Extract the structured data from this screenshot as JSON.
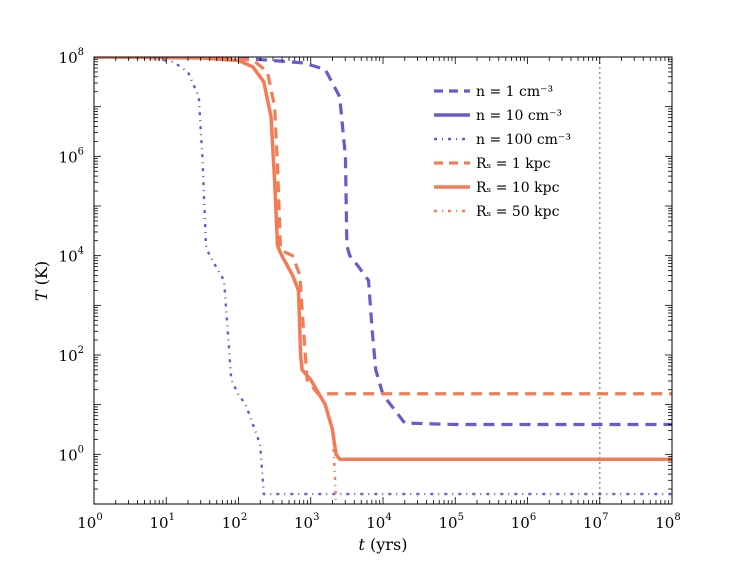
{
  "chart_data": {
    "type": "line",
    "title": "",
    "xlabel": {
      "var": "t",
      "unit": "yrs"
    },
    "ylabel": {
      "var": "T",
      "unit": "K"
    },
    "xscale": "log",
    "yscale": "log",
    "xlim_log10": [
      0,
      8
    ],
    "ylim_log10": [
      -1,
      8
    ],
    "xticks": [
      {
        "base": "10",
        "exp": "0"
      },
      {
        "base": "10",
        "exp": "1"
      },
      {
        "base": "10",
        "exp": "2"
      },
      {
        "base": "10",
        "exp": "3"
      },
      {
        "base": "10",
        "exp": "4"
      },
      {
        "base": "10",
        "exp": "5"
      },
      {
        "base": "10",
        "exp": "6"
      },
      {
        "base": "10",
        "exp": "7"
      },
      {
        "base": "10",
        "exp": "8"
      }
    ],
    "yticks": [
      {
        "base": "10",
        "exp": "0",
        "value_log10": 0
      },
      {
        "base": "10",
        "exp": "2",
        "value_log10": 2
      },
      {
        "base": "10",
        "exp": "4",
        "value_log10": 4
      },
      {
        "base": "10",
        "exp": "6",
        "value_log10": 6
      },
      {
        "base": "10",
        "exp": "8",
        "value_log10": 8
      }
    ],
    "vline": {
      "x_log10": 7,
      "color": "#999999",
      "style": "dotted"
    },
    "colors": {
      "n_series": "#6a5acd",
      "rs_series": "#f47c55"
    },
    "legend_position": "top-right",
    "legend": [
      {
        "label": "n = 1 cm⁻³",
        "color": "#6a5acd",
        "style": "dashed"
      },
      {
        "label": "n = 10 cm⁻³",
        "color": "#6a5acd",
        "style": "solid"
      },
      {
        "label": "n = 100 cm⁻³",
        "color": "#6a5acd",
        "style": "dashdot"
      },
      {
        "label": "Rₛ = 1 kpc",
        "color": "#f47c55",
        "style": "dashed"
      },
      {
        "label": "Rₛ = 10 kpc",
        "color": "#f47c55",
        "style": "solid"
      },
      {
        "label": "Rₛ = 50 kpc",
        "color": "#f47c55",
        "style": "dashdot"
      }
    ],
    "series": [
      {
        "name": "n = 1 cm^-3 (Rs = 1 kpc)",
        "color": "#6a5acd",
        "style": "dashed",
        "x_log10": [
          0,
          1.5,
          2.2,
          2.9,
          3.2,
          3.4,
          3.48,
          3.5,
          3.54,
          3.65,
          3.8,
          3.85,
          3.9,
          4.0,
          4.3,
          5,
          6,
          7,
          8
        ],
        "y_log10": [
          8,
          7.98,
          7.96,
          7.88,
          7.75,
          7.2,
          6,
          4.2,
          4.0,
          3.8,
          3.5,
          2.5,
          1.7,
          1.2,
          0.63,
          0.6,
          0.6,
          0.6,
          0.6
        ]
      },
      {
        "name": "R_s = 1 kpc",
        "color": "#f47c55",
        "style": "dashed",
        "x_log10": [
          0,
          1.5,
          2.2,
          2.4,
          2.5,
          2.54,
          2.56,
          2.58,
          2.6,
          2.75,
          2.85,
          2.9,
          2.95,
          3.1,
          4,
          5,
          6,
          7,
          8
        ],
        "y_log10": [
          8,
          7.98,
          7.94,
          7.7,
          7.0,
          5.8,
          5.0,
          4.2,
          4.1,
          4.0,
          3.6,
          2.5,
          1.5,
          1.22,
          1.22,
          1.22,
          1.22,
          1.22,
          1.22
        ]
      },
      {
        "name": "n = 10 cm^-3 (Rs = 10 kpc)",
        "color": "#f47c55",
        "style": "solid",
        "x_log10": [
          0,
          1.5,
          2.0,
          2.2,
          2.35,
          2.45,
          2.5,
          2.54,
          2.6,
          2.75,
          2.83,
          2.86,
          2.88,
          3.0,
          3.2,
          3.3,
          3.35,
          3.4,
          4,
          5,
          6,
          7,
          8
        ],
        "y_log10": [
          8,
          7.98,
          7.93,
          7.8,
          7.5,
          6.8,
          5.5,
          4.2,
          4.0,
          3.6,
          3.3,
          2.0,
          1.7,
          1.5,
          1.0,
          0.5,
          0.0,
          -0.1,
          -0.1,
          -0.1,
          -0.1,
          -0.1,
          -0.1
        ]
      },
      {
        "name": "n = 100 cm^-3",
        "color": "#6a5acd",
        "style": "dashdot",
        "x_log10": [
          0,
          0.8,
          1.1,
          1.3,
          1.45,
          1.5,
          1.55,
          1.6,
          1.68,
          1.8,
          1.85,
          1.9,
          2.0,
          2.1,
          2.3,
          2.35,
          2.4,
          3,
          4,
          5,
          6,
          7,
          8
        ],
        "y_log10": [
          8,
          7.98,
          7.9,
          7.7,
          7.2,
          6.0,
          4.2,
          4.0,
          3.8,
          3.5,
          2.5,
          1.5,
          1.2,
          1.0,
          0.2,
          -0.8,
          -0.8,
          -0.8,
          -0.8,
          -0.8,
          -0.8,
          -0.8,
          -0.8
        ]
      },
      {
        "name": "R_s = 50 kpc",
        "color": "#f47c55",
        "style": "dashdot",
        "x_log10": [
          0,
          1.5,
          2.0,
          2.2,
          2.35,
          2.45,
          2.5,
          2.54,
          2.6,
          2.75,
          2.83,
          2.86,
          2.88,
          3.0,
          3.2,
          3.3,
          3.32,
          3.34,
          3.35,
          4,
          5,
          6,
          7,
          8
        ],
        "y_log10": [
          8,
          7.98,
          7.93,
          7.8,
          7.5,
          6.8,
          5.5,
          4.2,
          4.0,
          3.6,
          3.3,
          2.0,
          1.7,
          1.5,
          1.0,
          0.5,
          0.0,
          -0.6,
          -1.05,
          -1.05,
          -1.05,
          -1.05,
          -1.05,
          -1.05
        ]
      }
    ]
  }
}
